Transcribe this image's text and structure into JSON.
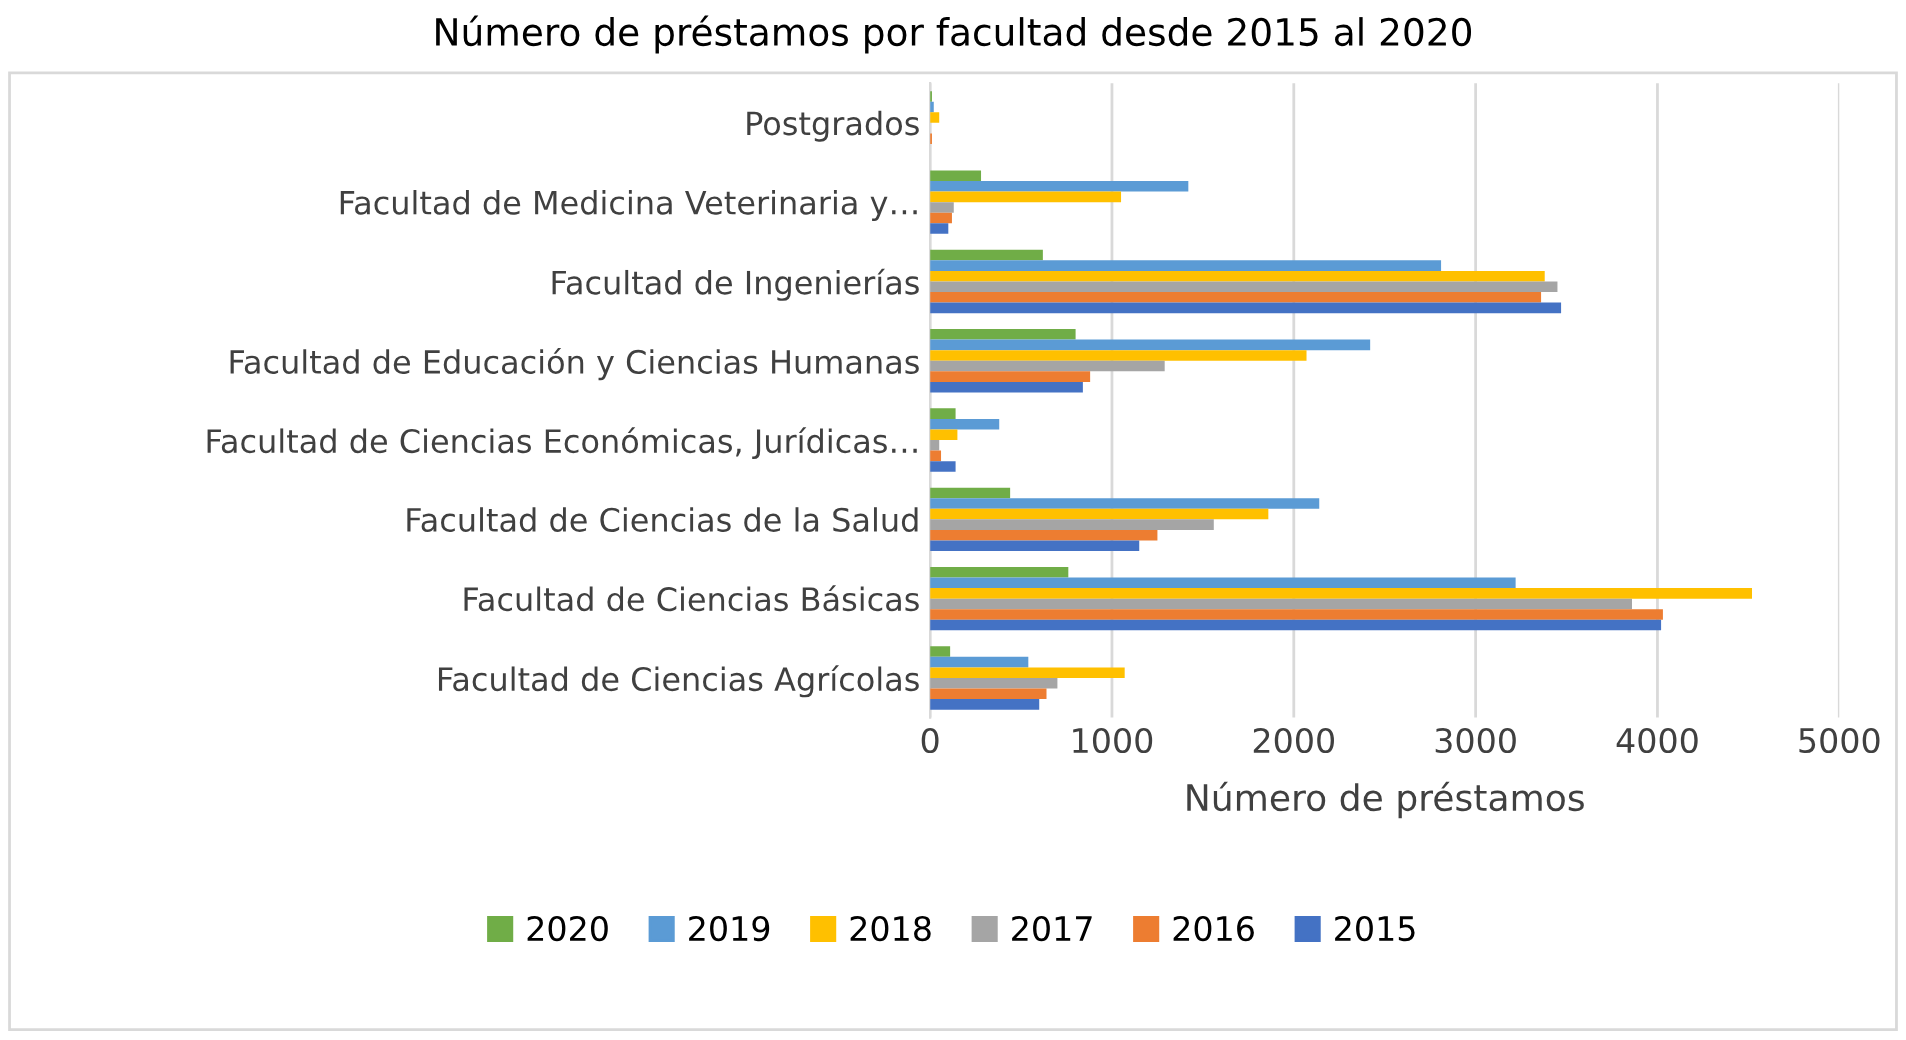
{
  "chart_data": {
    "type": "bar",
    "orientation": "horizontal",
    "title": "Número de préstamos por facultad desde 2015 al 2020",
    "xlabel": "Número de préstamos",
    "categories": [
      "Postgrados",
      "Facultad de Medicina Veterinaria y…",
      "Facultad de Ingenierías",
      "Facultad de Educación y Ciencias Humanas",
      "Facultad de Ciencias Económicas, Jurídicas…",
      "Facultad de Ciencias de la Salud",
      "Facultad de Ciencias Básicas",
      "Facultad de Ciencias Agrícolas"
    ],
    "series": [
      {
        "name": "2020",
        "color": "#70ad47",
        "values": [
          10,
          280,
          620,
          800,
          140,
          440,
          760,
          110
        ]
      },
      {
        "name": "2019",
        "color": "#5b9bd5",
        "values": [
          20,
          1420,
          2810,
          2420,
          380,
          2140,
          3220,
          540
        ]
      },
      {
        "name": "2018",
        "color": "#ffc000",
        "values": [
          50,
          1050,
          3380,
          2070,
          150,
          1860,
          4520,
          1070
        ]
      },
      {
        "name": "2017",
        "color": "#a5a5a5",
        "values": [
          0,
          130,
          3450,
          1290,
          50,
          1560,
          3860,
          700
        ]
      },
      {
        "name": "2016",
        "color": "#ed7d31",
        "values": [
          10,
          120,
          3360,
          880,
          60,
          1250,
          4030,
          640
        ]
      },
      {
        "name": "2015",
        "color": "#4472c4",
        "values": [
          0,
          100,
          3470,
          840,
          140,
          1150,
          4020,
          600
        ]
      }
    ],
    "xlim": [
      0,
      5000
    ],
    "xticks": [
      0,
      1000,
      2000,
      3000,
      4000,
      5000
    ],
    "grid": "x",
    "legend": "bottom"
  }
}
